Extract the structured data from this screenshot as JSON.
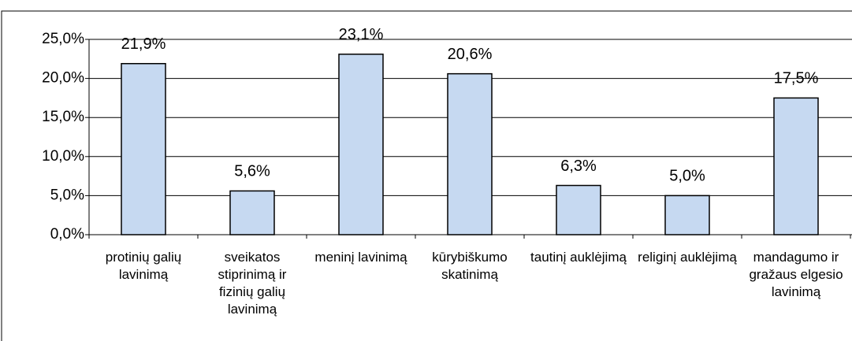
{
  "chart_data": {
    "type": "bar",
    "categories": [
      "protinių galių lavinimą",
      "sveikatos stiprinimą ir fizinių galių lavinimą",
      "meninį lavinimą",
      "kūrybiškumo skatinimą",
      "tautinį auklėjimą",
      "religinį auklėjimą",
      "mandagumo ir gražaus elgesio lavinimą"
    ],
    "values": [
      21.9,
      5.6,
      23.1,
      20.6,
      6.3,
      5.0,
      17.5
    ],
    "value_labels": [
      "21,9%",
      "5,6%",
      "23,1%",
      "20,6%",
      "6,3%",
      "5,0%",
      "17,5%"
    ],
    "color": "#c6d9f1",
    "ylim": [
      0,
      25
    ],
    "yticks": [
      {
        "value": 0,
        "label": "0,0%"
      },
      {
        "value": 5,
        "label": "5,0%"
      },
      {
        "value": 10,
        "label": "10,0%"
      },
      {
        "value": 15,
        "label": "15,0%"
      },
      {
        "value": 20,
        "label": "20,0%"
      },
      {
        "value": 25,
        "label": "25,0%"
      }
    ],
    "grid": true
  }
}
